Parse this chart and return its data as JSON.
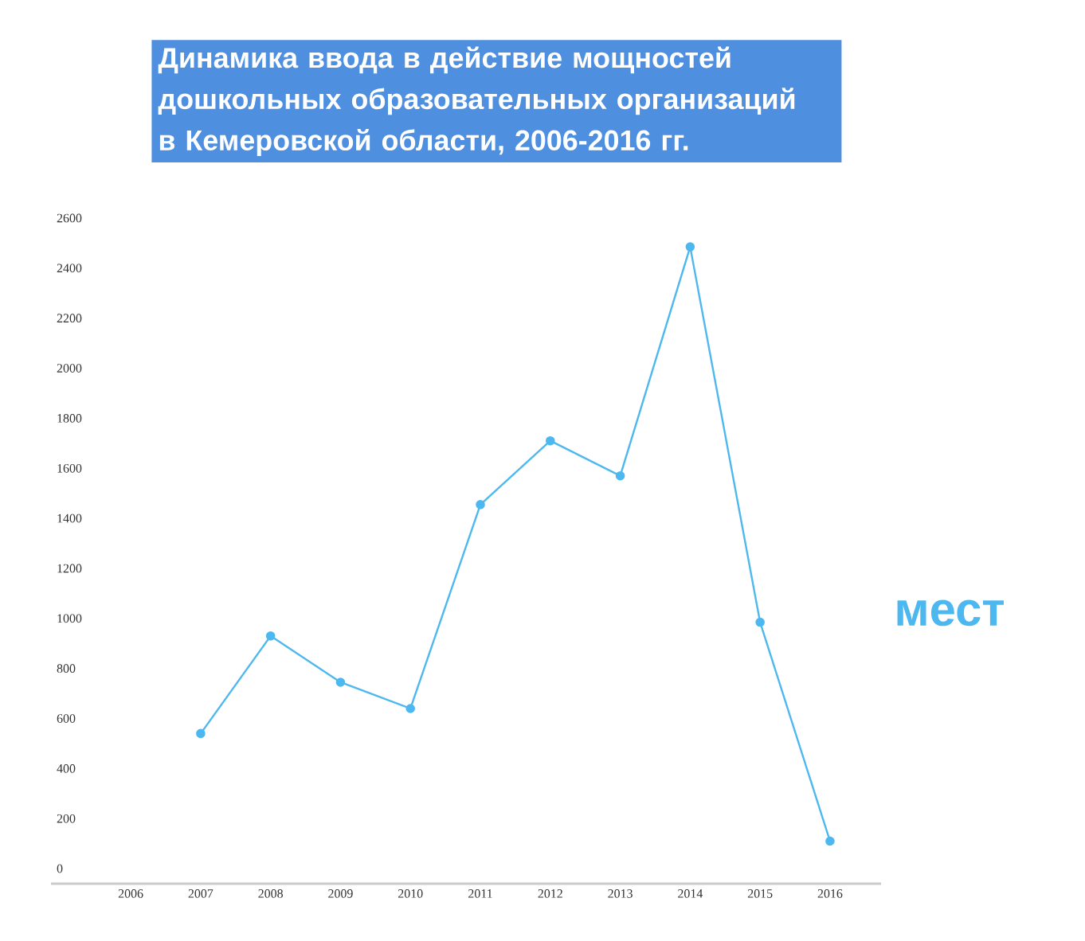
{
  "chart_data": {
    "type": "line",
    "title": "Динамика ввода в действие мощностей дошкольных образовательных организаций в Кемеровской области, 2006-2016 гг.",
    "categories": [
      "2006",
      "2007",
      "2008",
      "2009",
      "2010",
      "2011",
      "2012",
      "2013",
      "2014",
      "2015",
      "2016"
    ],
    "series": [
      {
        "color": "#4db8f0",
        "values": [
          null,
          540,
          930,
          745,
          640,
          1455,
          1710,
          1570,
          2485,
          985,
          110
        ]
      }
    ],
    "ylim": [
      -60,
      2600
    ],
    "yticks": [
      0,
      200,
      400,
      600,
      800,
      1000,
      1200,
      1400,
      1600,
      1800,
      2000,
      2200,
      2400,
      2600
    ],
    "annotations": [
      "мест"
    ],
    "grid": false,
    "marker": "circle",
    "line_style": "solid"
  }
}
